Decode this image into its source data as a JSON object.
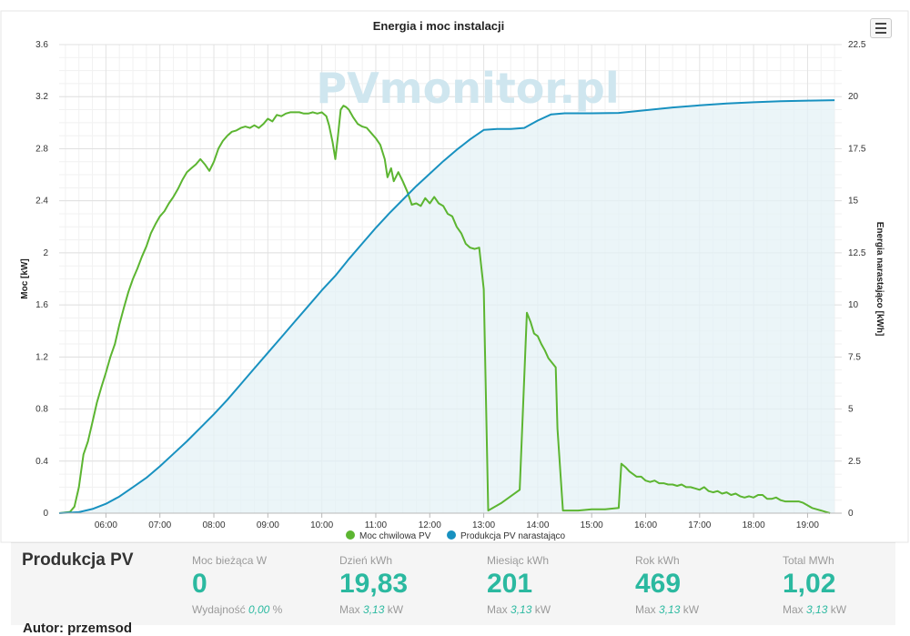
{
  "watermark": "PVmonitor.pl",
  "menu": {
    "icon": "hamburger-menu-icon"
  },
  "chart_data": {
    "type": "line",
    "title": "Energia i moc instalacji",
    "ylabel_left": "Moc [kW]",
    "ylabel_right": "Energia narastająco [kWh]",
    "ylim_left": [
      0,
      3.6
    ],
    "ylim_right": [
      0,
      22.5
    ],
    "yticks_left": [
      "0",
      "0.4",
      "0.8",
      "1.2",
      "1.6",
      "2",
      "2.4",
      "2.8",
      "3.2",
      "3.6"
    ],
    "yticks_right": [
      "0",
      "2.5",
      "5",
      "7.5",
      "10",
      "12.5",
      "15",
      "17.5",
      "20",
      "22.5"
    ],
    "xticks": [
      "06:00",
      "07:00",
      "08:00",
      "09:00",
      "10:00",
      "11:00",
      "12:00",
      "13:00",
      "14:00",
      "15:00",
      "16:00",
      "17:00",
      "18:00",
      "19:00"
    ],
    "xlim": [
      "05:08",
      "19:38"
    ],
    "grid": true,
    "legend_position": "bottom",
    "series": [
      {
        "name": "Moc chwilowa PV",
        "axis": "left",
        "color": "#5cb531",
        "points": [
          [
            "05:08",
            0.0
          ],
          [
            "05:20",
            0.01
          ],
          [
            "05:25",
            0.05
          ],
          [
            "05:30",
            0.2
          ],
          [
            "05:35",
            0.45
          ],
          [
            "05:40",
            0.55
          ],
          [
            "05:45",
            0.7
          ],
          [
            "05:50",
            0.85
          ],
          [
            "05:55",
            0.97
          ],
          [
            "06:00",
            1.08
          ],
          [
            "06:05",
            1.2
          ],
          [
            "06:10",
            1.3
          ],
          [
            "06:15",
            1.45
          ],
          [
            "06:20",
            1.58
          ],
          [
            "06:25",
            1.7
          ],
          [
            "06:30",
            1.8
          ],
          [
            "06:35",
            1.88
          ],
          [
            "06:40",
            1.97
          ],
          [
            "06:45",
            2.05
          ],
          [
            "06:50",
            2.15
          ],
          [
            "06:55",
            2.22
          ],
          [
            "07:00",
            2.28
          ],
          [
            "07:05",
            2.32
          ],
          [
            "07:10",
            2.38
          ],
          [
            "07:15",
            2.43
          ],
          [
            "07:20",
            2.49
          ],
          [
            "07:25",
            2.56
          ],
          [
            "07:30",
            2.62
          ],
          [
            "07:35",
            2.65
          ],
          [
            "07:40",
            2.68
          ],
          [
            "07:45",
            2.72
          ],
          [
            "07:50",
            2.68
          ],
          [
            "07:55",
            2.63
          ],
          [
            "08:00",
            2.7
          ],
          [
            "08:05",
            2.8
          ],
          [
            "08:10",
            2.86
          ],
          [
            "08:15",
            2.9
          ],
          [
            "08:20",
            2.93
          ],
          [
            "08:25",
            2.94
          ],
          [
            "08:30",
            2.96
          ],
          [
            "08:35",
            2.97
          ],
          [
            "08:40",
            2.96
          ],
          [
            "08:45",
            2.98
          ],
          [
            "08:50",
            2.96
          ],
          [
            "08:55",
            2.99
          ],
          [
            "09:00",
            3.03
          ],
          [
            "09:05",
            3.01
          ],
          [
            "09:10",
            3.06
          ],
          [
            "09:15",
            3.05
          ],
          [
            "09:20",
            3.07
          ],
          [
            "09:25",
            3.08
          ],
          [
            "09:30",
            3.08
          ],
          [
            "09:35",
            3.08
          ],
          [
            "09:40",
            3.07
          ],
          [
            "09:45",
            3.07
          ],
          [
            "09:50",
            3.08
          ],
          [
            "09:55",
            3.07
          ],
          [
            "10:00",
            3.08
          ],
          [
            "10:05",
            3.05
          ],
          [
            "10:08",
            2.98
          ],
          [
            "10:12",
            2.85
          ],
          [
            "10:15",
            2.72
          ],
          [
            "10:18",
            2.9
          ],
          [
            "10:21",
            3.1
          ],
          [
            "10:24",
            3.13
          ],
          [
            "10:27",
            3.12
          ],
          [
            "10:30",
            3.1
          ],
          [
            "10:35",
            3.04
          ],
          [
            "10:40",
            2.99
          ],
          [
            "10:45",
            2.97
          ],
          [
            "10:50",
            2.96
          ],
          [
            "10:55",
            2.92
          ],
          [
            "11:00",
            2.88
          ],
          [
            "11:05",
            2.83
          ],
          [
            "11:10",
            2.72
          ],
          [
            "11:13",
            2.58
          ],
          [
            "11:17",
            2.65
          ],
          [
            "11:20",
            2.55
          ],
          [
            "11:25",
            2.62
          ],
          [
            "11:30",
            2.55
          ],
          [
            "11:35",
            2.47
          ],
          [
            "11:40",
            2.37
          ],
          [
            "11:45",
            2.38
          ],
          [
            "11:50",
            2.36
          ],
          [
            "11:55",
            2.42
          ],
          [
            "12:00",
            2.38
          ],
          [
            "12:05",
            2.43
          ],
          [
            "12:10",
            2.38
          ],
          [
            "12:15",
            2.36
          ],
          [
            "12:20",
            2.3
          ],
          [
            "12:25",
            2.28
          ],
          [
            "12:30",
            2.2
          ],
          [
            "12:35",
            2.15
          ],
          [
            "12:40",
            2.07
          ],
          [
            "12:45",
            2.04
          ],
          [
            "12:50",
            2.03
          ],
          [
            "12:55",
            2.04
          ],
          [
            "13:00",
            1.72
          ],
          [
            "13:05",
            0.02
          ],
          [
            "13:20",
            0.08
          ],
          [
            "13:40",
            0.18
          ],
          [
            "13:48",
            1.54
          ],
          [
            "13:52",
            1.47
          ],
          [
            "13:56",
            1.38
          ],
          [
            "14:00",
            1.36
          ],
          [
            "14:04",
            1.3
          ],
          [
            "14:08",
            1.25
          ],
          [
            "14:12",
            1.19
          ],
          [
            "14:20",
            1.12
          ],
          [
            "14:22",
            0.65
          ],
          [
            "14:28",
            0.02
          ],
          [
            "14:45",
            0.02
          ],
          [
            "15:00",
            0.03
          ],
          [
            "15:15",
            0.03
          ],
          [
            "15:30",
            0.04
          ],
          [
            "15:33",
            0.38
          ],
          [
            "15:38",
            0.35
          ],
          [
            "15:42",
            0.32
          ],
          [
            "15:46",
            0.3
          ],
          [
            "15:50",
            0.28
          ],
          [
            "15:55",
            0.28
          ],
          [
            "16:00",
            0.25
          ],
          [
            "16:05",
            0.24
          ],
          [
            "16:10",
            0.25
          ],
          [
            "16:15",
            0.23
          ],
          [
            "16:20",
            0.23
          ],
          [
            "16:25",
            0.22
          ],
          [
            "16:30",
            0.22
          ],
          [
            "16:35",
            0.21
          ],
          [
            "16:40",
            0.22
          ],
          [
            "16:45",
            0.2
          ],
          [
            "16:50",
            0.2
          ],
          [
            "16:55",
            0.19
          ],
          [
            "17:00",
            0.18
          ],
          [
            "17:05",
            0.2
          ],
          [
            "17:10",
            0.17
          ],
          [
            "17:15",
            0.16
          ],
          [
            "17:20",
            0.17
          ],
          [
            "17:25",
            0.15
          ],
          [
            "17:30",
            0.16
          ],
          [
            "17:35",
            0.14
          ],
          [
            "17:40",
            0.15
          ],
          [
            "17:45",
            0.13
          ],
          [
            "17:50",
            0.12
          ],
          [
            "17:55",
            0.13
          ],
          [
            "18:00",
            0.12
          ],
          [
            "18:05",
            0.14
          ],
          [
            "18:10",
            0.14
          ],
          [
            "18:15",
            0.11
          ],
          [
            "18:20",
            0.11
          ],
          [
            "18:25",
            0.12
          ],
          [
            "18:30",
            0.1
          ],
          [
            "18:35",
            0.09
          ],
          [
            "18:40",
            0.09
          ],
          [
            "18:45",
            0.09
          ],
          [
            "18:50",
            0.09
          ],
          [
            "18:55",
            0.08
          ],
          [
            "19:00",
            0.06
          ],
          [
            "19:05",
            0.04
          ],
          [
            "19:10",
            0.03
          ],
          [
            "19:15",
            0.02
          ],
          [
            "19:20",
            0.01
          ],
          [
            "19:25",
            0.0
          ]
        ]
      },
      {
        "name": "Produkcja PV narastająco",
        "axis": "right",
        "color": "#1891c0",
        "fill": "#e4f2f5",
        "points": [
          [
            "05:08",
            0.0
          ],
          [
            "05:30",
            0.05
          ],
          [
            "05:45",
            0.2
          ],
          [
            "06:00",
            0.45
          ],
          [
            "06:15",
            0.8
          ],
          [
            "06:30",
            1.25
          ],
          [
            "06:45",
            1.7
          ],
          [
            "07:00",
            2.25
          ],
          [
            "07:15",
            2.85
          ],
          [
            "07:30",
            3.45
          ],
          [
            "07:45",
            4.1
          ],
          [
            "08:00",
            4.75
          ],
          [
            "08:15",
            5.45
          ],
          [
            "08:30",
            6.2
          ],
          [
            "08:45",
            6.95
          ],
          [
            "09:00",
            7.7
          ],
          [
            "09:15",
            8.45
          ],
          [
            "09:30",
            9.2
          ],
          [
            "09:45",
            9.95
          ],
          [
            "10:00",
            10.7
          ],
          [
            "10:15",
            11.4
          ],
          [
            "10:30",
            12.2
          ],
          [
            "10:45",
            12.95
          ],
          [
            "11:00",
            13.7
          ],
          [
            "11:15",
            14.4
          ],
          [
            "11:30",
            15.05
          ],
          [
            "11:45",
            15.7
          ],
          [
            "12:00",
            16.3
          ],
          [
            "12:15",
            16.9
          ],
          [
            "12:30",
            17.45
          ],
          [
            "12:45",
            17.95
          ],
          [
            "13:00",
            18.4
          ],
          [
            "13:15",
            18.45
          ],
          [
            "13:30",
            18.45
          ],
          [
            "13:45",
            18.5
          ],
          [
            "14:00",
            18.85
          ],
          [
            "14:15",
            19.15
          ],
          [
            "14:30",
            19.2
          ],
          [
            "14:45",
            19.2
          ],
          [
            "15:00",
            19.2
          ],
          [
            "15:30",
            19.22
          ],
          [
            "16:00",
            19.35
          ],
          [
            "16:30",
            19.48
          ],
          [
            "17:00",
            19.58
          ],
          [
            "17:30",
            19.67
          ],
          [
            "18:00",
            19.73
          ],
          [
            "18:30",
            19.78
          ],
          [
            "19:00",
            19.81
          ],
          [
            "19:30",
            19.83
          ]
        ]
      }
    ]
  },
  "stats_panel": {
    "title": "Produkcja PV",
    "current": {
      "label": "Moc bieżąca W",
      "value": "0",
      "sub_prefix": "Wydajność",
      "sub_value": "0,00",
      "sub_unit": "%"
    },
    "day": {
      "label": "Dzień kWh",
      "value": "19,83",
      "sub_prefix": "Max",
      "sub_value": "3,13",
      "sub_unit": "kW"
    },
    "month": {
      "label": "Miesiąc kWh",
      "value": "201",
      "sub_prefix": "Max",
      "sub_value": "3,13",
      "sub_unit": "kW"
    },
    "year": {
      "label": "Rok kWh",
      "value": "469",
      "sub_prefix": "Max",
      "sub_value": "3,13",
      "sub_unit": "kW"
    },
    "total": {
      "label": "Total MWh",
      "value": "1,02",
      "sub_prefix": "Max",
      "sub_value": "3,13",
      "sub_unit": "kW"
    }
  },
  "footer": {
    "author": "Autor: przemsod"
  }
}
